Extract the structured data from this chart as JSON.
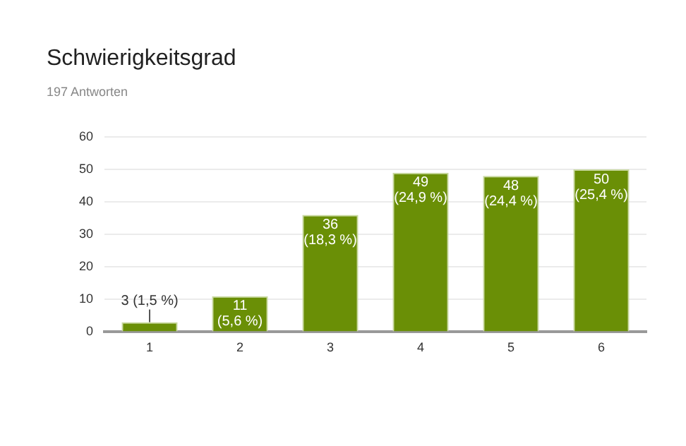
{
  "chart_data": {
    "type": "bar",
    "title": "Schwierigkeitsgrad",
    "subtitle": "197 Antworten",
    "categories": [
      "1",
      "2",
      "3",
      "4",
      "5",
      "6"
    ],
    "values": [
      3,
      11,
      36,
      49,
      48,
      50
    ],
    "value_labels": [
      "3 (1,5 %)",
      "11 (5,6 %)",
      "36 (18,3 %)",
      "49 (24,9 %)",
      "48 (24,4 %)",
      "50 (25,4 %)"
    ],
    "color": "#6a8f06",
    "ylim": [
      0,
      60
    ],
    "yticks": [
      0,
      10,
      20,
      30,
      40,
      50,
      60
    ],
    "grid": "y",
    "legend": false
  }
}
